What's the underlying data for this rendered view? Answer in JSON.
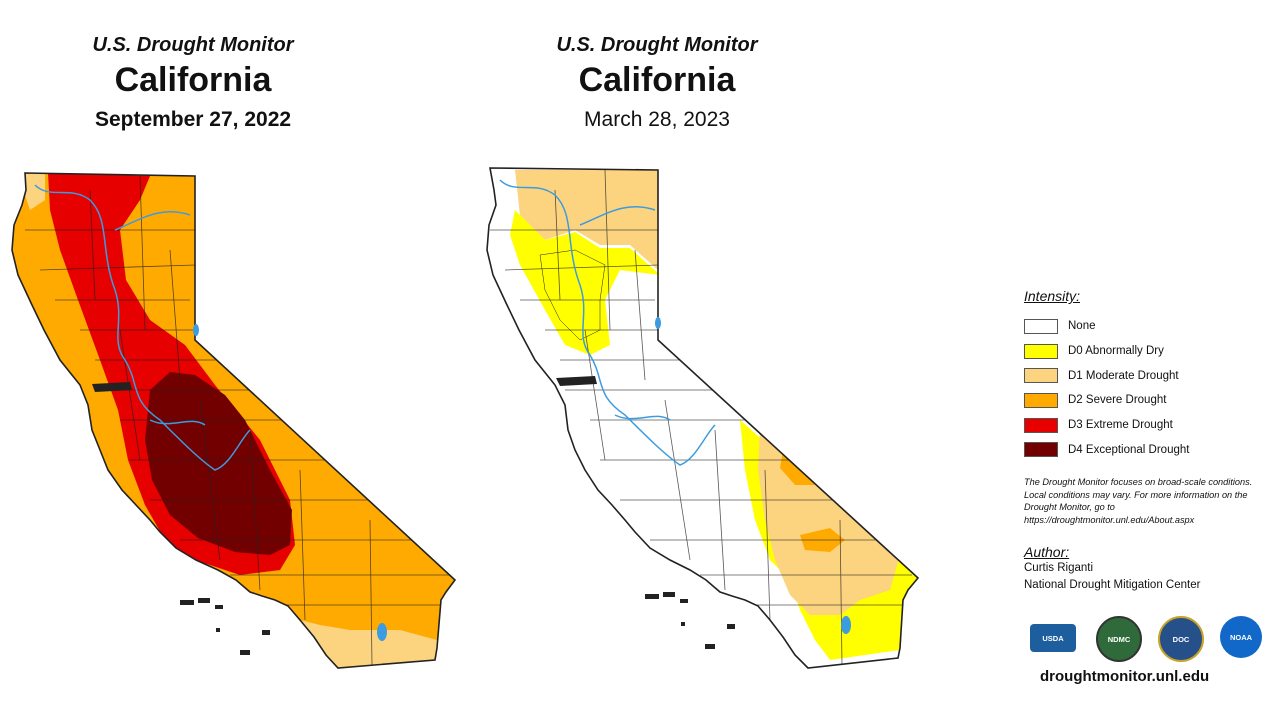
{
  "maps": [
    {
      "subtitle": "U.S. Drought Monitor",
      "state": "California",
      "date": "September 27, 2022"
    },
    {
      "subtitle": "U.S. Drought Monitor",
      "state": "California",
      "date": "March 28, 2023"
    }
  ],
  "legend": {
    "heading": "Intensity:",
    "items": [
      {
        "label": "None",
        "color": "#ffffff"
      },
      {
        "label": "D0 Abnormally Dry",
        "color": "#ffff00"
      },
      {
        "label": "D1 Moderate Drought",
        "color": "#fcd37f"
      },
      {
        "label": "D2 Severe Drought",
        "color": "#ffaa00"
      },
      {
        "label": "D3 Extreme Drought",
        "color": "#e60000"
      },
      {
        "label": "D4 Exceptional Drought",
        "color": "#730000"
      }
    ]
  },
  "note": "The Drought Monitor focuses on broad-scale conditions. Local conditions may vary. For more information on the Drought Monitor, go to https://droughtmonitor.unl.edu/About.aspx",
  "author": {
    "heading": "Author:",
    "name": "Curtis Riganti",
    "org": "National Drought Mitigation Center"
  },
  "logos": [
    "USDA",
    "NDMC",
    "DOC",
    "NOAA"
  ],
  "footer_url": "droughtmonitor.unl.edu",
  "colors": {
    "river": "#3d9be0",
    "boundary": "#222222"
  }
}
